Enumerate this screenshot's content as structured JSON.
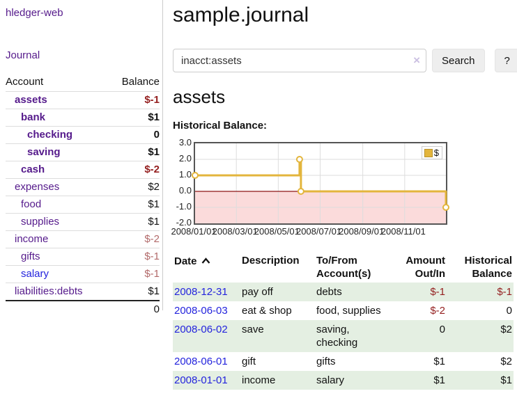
{
  "app": {
    "brand": "hledger-web"
  },
  "sidebar": {
    "journal_link": "Journal",
    "accounts": {
      "headers": [
        "Account",
        "Balance"
      ],
      "rows": [
        {
          "name": "assets",
          "balance": "$-1"
        },
        {
          "name": "bank",
          "balance": "$1"
        },
        {
          "name": "checking",
          "balance": "0"
        },
        {
          "name": "saving",
          "balance": "$1"
        },
        {
          "name": "cash",
          "balance": "$-2"
        },
        {
          "name": "expenses",
          "balance": "$2"
        },
        {
          "name": "food",
          "balance": "$1"
        },
        {
          "name": "supplies",
          "balance": "$1"
        },
        {
          "name": "income",
          "balance": "$-2"
        },
        {
          "name": "gifts",
          "balance": "$-1"
        },
        {
          "name": "salary",
          "balance": "$-1"
        },
        {
          "name": "liabilities:debts",
          "balance": "$1"
        }
      ],
      "total": "0"
    }
  },
  "header": {
    "title": "sample.journal"
  },
  "search": {
    "value": "inacct:assets",
    "clear_label": "×",
    "search_button": "Search",
    "help_button": "?"
  },
  "account_view": {
    "title": "assets",
    "section_label": "Historical Balance:"
  },
  "chart_data": {
    "type": "line",
    "title": "Historical Balance:",
    "series": [
      {
        "name": "$",
        "step": true,
        "points": [
          [
            "2008-01-01",
            1.0
          ],
          [
            "2008-06-01",
            2.0
          ],
          [
            "2008-06-03",
            0.0
          ],
          [
            "2008-12-31",
            -1.0
          ]
        ]
      }
    ],
    "ylim": [
      -2.0,
      3.0
    ],
    "yticks": [
      {
        "label": "3.0",
        "value": 3
      },
      {
        "label": "2.0",
        "value": 2
      },
      {
        "label": "1.0",
        "value": 1
      },
      {
        "label": "0.0",
        "value": 0
      },
      {
        "label": "-1.0",
        "value": -1
      },
      {
        "label": "-2.0",
        "value": -2
      }
    ],
    "xticks": [
      {
        "label": "2008/01/01",
        "date": "2008-01-01"
      },
      {
        "label": "2008/03/01",
        "date": "2008-03-01"
      },
      {
        "label": "2008/05/01",
        "date": "2008-05-01"
      },
      {
        "label": "2008/07/01",
        "date": "2008-07-01"
      },
      {
        "label": "2008/09/01",
        "date": "2008-09-01"
      },
      {
        "label": "2008/11/01",
        "date": "2008-11-01"
      }
    ],
    "xrange": [
      "2008-01-01",
      "2008-12-31"
    ],
    "legend": {
      "label": "$",
      "position": "top-right"
    },
    "grid": true,
    "line_color": "#e3b53c",
    "negative_fill": "#fbdbdb",
    "zero_line_color": "#8c1515"
  },
  "register": {
    "headers": {
      "date": "Date",
      "description": "Description",
      "tofrom": "To/From\nAccount(s)",
      "amount": "Amount\nOut/In",
      "balance": "Historical\nBalance"
    },
    "rows": [
      {
        "date": "2008-12-31",
        "description": "pay off",
        "tofrom": "debts",
        "amount": "$-1",
        "balance": "$-1"
      },
      {
        "date": "2008-06-03",
        "description": "eat & shop",
        "tofrom": "food, supplies",
        "amount": "$-2",
        "balance": "0"
      },
      {
        "date": "2008-06-02",
        "description": "save",
        "tofrom": "saving,\nchecking",
        "amount": "0",
        "balance": "$2"
      },
      {
        "date": "2008-06-01",
        "description": "gift",
        "tofrom": "gifts",
        "amount": "$1",
        "balance": "$2"
      },
      {
        "date": "2008-01-01",
        "description": "income",
        "tofrom": "salary",
        "amount": "$1",
        "balance": "$1"
      }
    ]
  },
  "colors": {
    "link_purple": "#551a8b",
    "link_blue": "#2323dd",
    "negative_strong": "#941f1f",
    "negative_soft": "#b26a6a",
    "row_stripe_green": "#e4efe2",
    "chart_gold": "#e3b53c",
    "chart_negative_fill": "#fbdbdb",
    "chart_zero_line": "#8c1515",
    "button_bg": "#eeeeee"
  }
}
